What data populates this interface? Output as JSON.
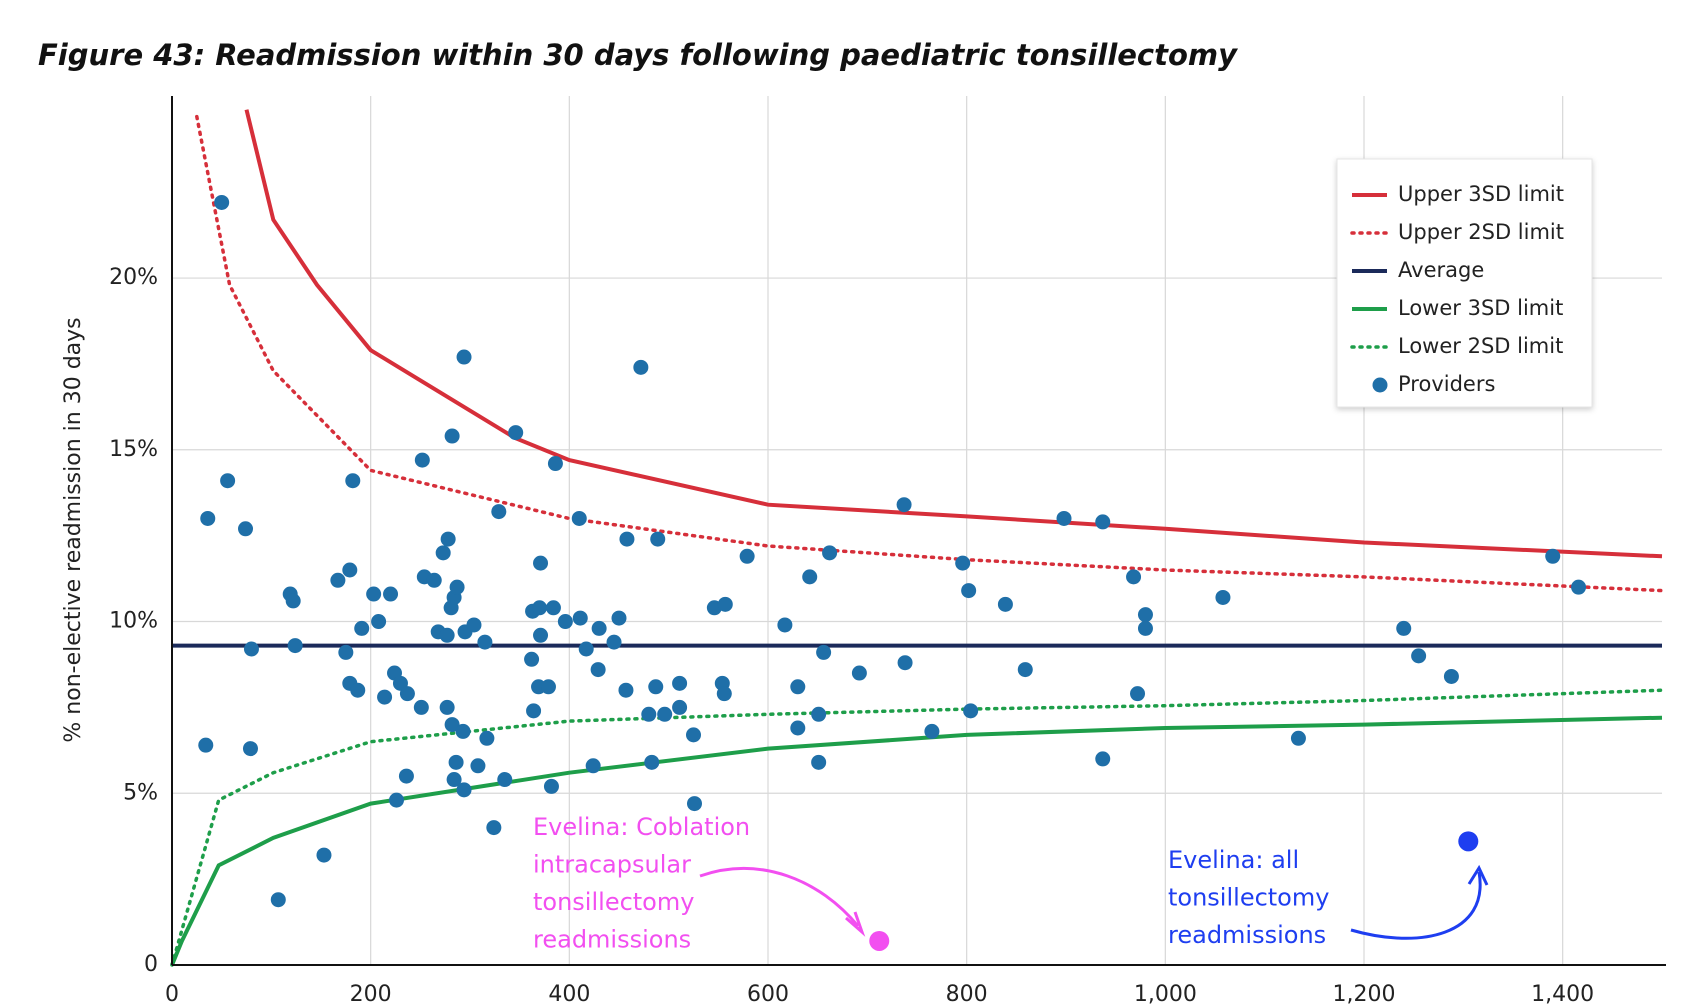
{
  "chart_data": {
    "type": "scatter",
    "title": "Figure 43: Readmission within 30 days following paediatric tonsillectomy",
    "y_label": "% non-elective readmission in 30 days",
    "xlim": [
      0,
      1500
    ],
    "ylim": [
      0,
      25.3
    ],
    "xticks": [
      0,
      200,
      400,
      600,
      800,
      {
        "value": 1000,
        "label": "1,000"
      },
      {
        "value": 1200,
        "label": "1,200"
      },
      {
        "value": 1400,
        "label": "1,400"
      }
    ],
    "yticks": [
      0,
      {
        "value": 5,
        "label": "5%"
      },
      {
        "value": 10,
        "label": "10%"
      },
      {
        "value": 15,
        "label": "15%"
      },
      {
        "value": 20,
        "label": "20%"
      }
    ],
    "grid": true,
    "legend": "upper right",
    "series": [
      {
        "name": "Upper 3SD limit",
        "kind": "line",
        "style": "solid",
        "color": "#d62f3a",
        "x": [
          75,
          102,
          146,
          200,
          345,
          400,
          600,
          800,
          1000,
          1200,
          1500
        ],
        "values": [
          24.9,
          21.7,
          19.8,
          17.9,
          15.35,
          14.7,
          13.4,
          13.06,
          12.7,
          12.3,
          11.9
        ]
      },
      {
        "name": "Upper 2SD limit",
        "kind": "line",
        "style": "dotted",
        "color": "#d62f3a",
        "x": [
          25,
          58,
          102,
          200,
          400,
          600,
          800,
          1000,
          1200,
          1500
        ],
        "values": [
          24.7,
          19.8,
          17.3,
          14.4,
          13.0,
          12.2,
          11.8,
          11.5,
          11.3,
          10.9
        ]
      },
      {
        "name": "Average",
        "kind": "line",
        "style": "solid",
        "color": "#1b2a5a",
        "x": [
          0,
          1500
        ],
        "values": [
          9.3,
          9.3
        ]
      },
      {
        "name": "Lower 3SD limit",
        "kind": "line",
        "style": "solid",
        "color": "#1e9e4a",
        "x": [
          0,
          10,
          47,
          102,
          200,
          400,
          600,
          800,
          1000,
          1200,
          1500
        ],
        "values": [
          0,
          0.7,
          2.9,
          3.7,
          4.7,
          5.6,
          6.3,
          6.7,
          6.9,
          7.0,
          7.2
        ]
      },
      {
        "name": "Lower 2SD limit",
        "kind": "line",
        "style": "dotted",
        "color": "#1e9e4a",
        "x": [
          0,
          47,
          102,
          200,
          400,
          600,
          800,
          1000,
          1200,
          1500
        ],
        "values": [
          0,
          4.8,
          5.6,
          6.5,
          7.1,
          7.3,
          7.45,
          7.55,
          7.7,
          8.0
        ]
      },
      {
        "name": "Providers",
        "kind": "point",
        "color": "#1f6fa8",
        "x": [
          50,
          36,
          56,
          74,
          34,
          80,
          79,
          107,
          153,
          119,
          122,
          124,
          167,
          179,
          182,
          175,
          179,
          187,
          191,
          203,
          208,
          220,
          214,
          224,
          230,
          237,
          236,
          226,
          251,
          252,
          254,
          264,
          268,
          273,
          278,
          282,
          277,
          277,
          281,
          284,
          287,
          282,
          286,
          284,
          293,
          294,
          294,
          295,
          304,
          308,
          315,
          317,
          324,
          329,
          335,
          346,
          362,
          363,
          364,
          370,
          371,
          371,
          369,
          379,
          382,
          384,
          386,
          396,
          411,
          410,
          417,
          430,
          429,
          424,
          445,
          450,
          458,
          457,
          472,
          480,
          487,
          489,
          483,
          496,
          511,
          511,
          525,
          526,
          546,
          557,
          554,
          556,
          579,
          617,
          630,
          630,
          642,
          651,
          651,
          656,
          662,
          692,
          737,
          738,
          765,
          796,
          802,
          804,
          839,
          859,
          898,
          937,
          937,
          968,
          972,
          980,
          980,
          1058,
          1134,
          1240,
          1255,
          1288,
          1390,
          1416
        ],
        "values": [
          22.2,
          13.0,
          14.1,
          12.7,
          6.4,
          9.2,
          6.3,
          1.9,
          3.2,
          10.8,
          10.6,
          9.3,
          11.2,
          11.5,
          14.1,
          9.1,
          8.2,
          8.0,
          9.8,
          10.8,
          10.0,
          10.8,
          7.8,
          8.5,
          8.2,
          7.9,
          5.5,
          4.8,
          7.5,
          14.7,
          11.3,
          11.2,
          9.7,
          12.0,
          12.4,
          15.4,
          9.6,
          7.5,
          10.4,
          10.7,
          11.0,
          7.0,
          5.9,
          5.4,
          6.8,
          5.1,
          17.7,
          9.7,
          9.9,
          5.8,
          9.4,
          6.6,
          4.0,
          13.2,
          5.4,
          15.5,
          8.9,
          10.3,
          7.4,
          10.4,
          11.7,
          9.6,
          8.1,
          8.1,
          5.2,
          10.4,
          14.6,
          10.0,
          10.1,
          13.0,
          9.2,
          9.8,
          8.6,
          5.8,
          9.4,
          10.1,
          12.4,
          8.0,
          17.4,
          7.3,
          8.1,
          12.4,
          5.9,
          7.3,
          8.2,
          7.5,
          6.7,
          4.7,
          10.4,
          10.5,
          8.2,
          7.9,
          11.9,
          9.9,
          8.1,
          6.9,
          11.3,
          7.3,
          5.9,
          9.1,
          12.0,
          8.5,
          13.4,
          8.8,
          6.8,
          11.7,
          10.9,
          7.4,
          10.5,
          8.6,
          13.0,
          12.9,
          6.0,
          11.3,
          7.9,
          10.2,
          9.8,
          10.7,
          6.6,
          9.8,
          9.0,
          8.4,
          11.9,
          11.0
        ]
      }
    ],
    "annotations": [
      {
        "lines": [
          "Evelina: Coblation",
          "intracapsular",
          "tonsillectomy",
          "readmissions"
        ],
        "color": "#f24ff0",
        "x": 712,
        "y": 0.7
      },
      {
        "lines": [
          "Evelina: all",
          "tonsillectomy",
          "readmissions"
        ],
        "color": "#1e3ef0",
        "x": 1305,
        "y": 3.6
      }
    ]
  }
}
